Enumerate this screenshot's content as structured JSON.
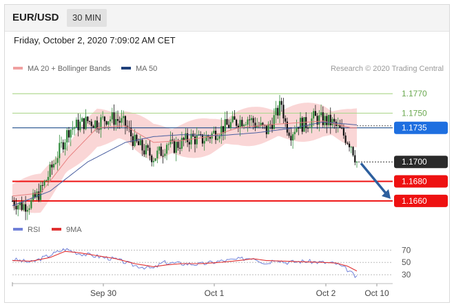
{
  "header": {
    "symbol": "EUR/USD",
    "timeframe": "30 MIN"
  },
  "datetime": "Friday, October 2, 2020 7:09:02 AM CET",
  "legend": {
    "bollinger": "MA 20 + Bollinger Bands",
    "ma50": "MA 50",
    "research": "Research © 2020 Trading Central"
  },
  "rsi_legend": {
    "rsi": "RSI",
    "ma9": "9MA"
  },
  "colors": {
    "band_fill": "#f8c8c8",
    "ma20": "#e88080",
    "ma50": "#4a5fa0",
    "bull": "#2e8b3a",
    "bear": "#111111",
    "green_line": "#b0d890",
    "blue_line": "#1f4e8c",
    "red_line": "#ee1111",
    "arrow": "#2d5f9e",
    "rsi": "#7080d8",
    "rsi_ma": "#e03030"
  },
  "chart_data": [
    {
      "type": "candlestick",
      "title": "EUR/USD 30 MIN",
      "x_ticks": [
        "Sep 30",
        "Oct 1",
        "Oct 2",
        "Oct 10"
      ],
      "ylim": [
        1.165,
        1.178
      ],
      "levels": [
        {
          "value": 1.177,
          "label": "1.1770",
          "kind": "green"
        },
        {
          "value": 1.175,
          "label": "1.1750",
          "kind": "green"
        },
        {
          "value": 1.1735,
          "label": "1.1735",
          "kind": "blue"
        },
        {
          "value": 1.17,
          "label": "1.1700",
          "kind": "current"
        },
        {
          "value": 1.168,
          "label": "1.1680",
          "kind": "red"
        },
        {
          "value": 1.166,
          "label": "1.1660",
          "kind": "red"
        }
      ],
      "anchors": [
        [
          0,
          1.166
        ],
        [
          5,
          1.1655
        ],
        [
          10,
          1.1658
        ],
        [
          15,
          1.167
        ],
        [
          20,
          1.169
        ],
        [
          25,
          1.1712
        ],
        [
          30,
          1.1733
        ],
        [
          35,
          1.1738
        ],
        [
          40,
          1.1742
        ],
        [
          45,
          1.174
        ],
        [
          50,
          1.1745
        ],
        [
          55,
          1.1744
        ],
        [
          60,
          1.1738
        ],
        [
          65,
          1.172
        ],
        [
          70,
          1.1712
        ],
        [
          75,
          1.1705
        ],
        [
          80,
          1.1712
        ],
        [
          82,
          1.172
        ],
        [
          85,
          1.1715
        ],
        [
          90,
          1.172
        ],
        [
          95,
          1.1725
        ],
        [
          100,
          1.1722
        ],
        [
          105,
          1.1727
        ],
        [
          110,
          1.1733
        ],
        [
          115,
          1.1738
        ],
        [
          120,
          1.1742
        ],
        [
          125,
          1.1745
        ],
        [
          130,
          1.1738
        ],
        [
          135,
          1.1732
        ],
        [
          140,
          1.1748
        ],
        [
          143,
          1.176
        ],
        [
          145,
          1.174
        ],
        [
          148,
          1.173
        ],
        [
          152,
          1.174
        ],
        [
          155,
          1.1738
        ],
        [
          160,
          1.1745
        ],
        [
          165,
          1.1743
        ],
        [
          170,
          1.174
        ],
        [
          175,
          1.173
        ],
        [
          180,
          1.1718
        ],
        [
          183,
          1.17
        ]
      ],
      "series": [
        {
          "name": "MA 20 + Bollinger Bands",
          "anchors": [
            [
              0,
              1.1665
            ],
            [
              15,
              1.1668
            ],
            [
              30,
              1.1705
            ],
            [
              45,
              1.1735
            ],
            [
              60,
              1.1737
            ],
            [
              75,
              1.172
            ],
            [
              90,
              1.1722
            ],
            [
              105,
              1.1726
            ],
            [
              120,
              1.1735
            ],
            [
              135,
              1.1738
            ],
            [
              150,
              1.174
            ],
            [
              165,
              1.1742
            ],
            [
              180,
              1.1735
            ]
          ]
        },
        {
          "name": "MA 50",
          "anchors": [
            [
              0,
              1.1655
            ],
            [
              20,
              1.167
            ],
            [
              40,
              1.17
            ],
            [
              60,
              1.172
            ],
            [
              75,
              1.1726
            ],
            [
              90,
              1.1728
            ],
            [
              110,
              1.1727
            ],
            [
              130,
              1.173
            ],
            [
              150,
              1.1735
            ],
            [
              165,
              1.1741
            ],
            [
              183,
              1.1738
            ]
          ]
        }
      ]
    },
    {
      "type": "line",
      "title": "RSI",
      "y_ticks": [
        70,
        50,
        30
      ],
      "ylim": [
        20,
        85
      ],
      "series": [
        {
          "name": "RSI",
          "anchors": [
            [
              0,
              55
            ],
            [
              10,
              50
            ],
            [
              20,
              62
            ],
            [
              28,
              72
            ],
            [
              35,
              65
            ],
            [
              45,
              60
            ],
            [
              55,
              55
            ],
            [
              65,
              45
            ],
            [
              75,
              40
            ],
            [
              80,
              50
            ],
            [
              90,
              48
            ],
            [
              100,
              47
            ],
            [
              110,
              52
            ],
            [
              120,
              55
            ],
            [
              128,
              58
            ],
            [
              135,
              48
            ],
            [
              140,
              56
            ],
            [
              145,
              50
            ],
            [
              155,
              52
            ],
            [
              165,
              50
            ],
            [
              172,
              48
            ],
            [
              178,
              38
            ],
            [
              183,
              25
            ]
          ]
        },
        {
          "name": "9MA",
          "anchors": [
            [
              0,
              53
            ],
            [
              10,
              52
            ],
            [
              20,
              58
            ],
            [
              28,
              68
            ],
            [
              35,
              66
            ],
            [
              45,
              61
            ],
            [
              55,
              56
            ],
            [
              65,
              48
            ],
            [
              75,
              43
            ],
            [
              82,
              46
            ],
            [
              90,
              48
            ],
            [
              100,
              48
            ],
            [
              110,
              50
            ],
            [
              120,
              53
            ],
            [
              128,
              56
            ],
            [
              135,
              53
            ],
            [
              145,
              52
            ],
            [
              155,
              51
            ],
            [
              165,
              50
            ],
            [
              172,
              49
            ],
            [
              178,
              44
            ],
            [
              183,
              36
            ]
          ]
        }
      ]
    }
  ]
}
